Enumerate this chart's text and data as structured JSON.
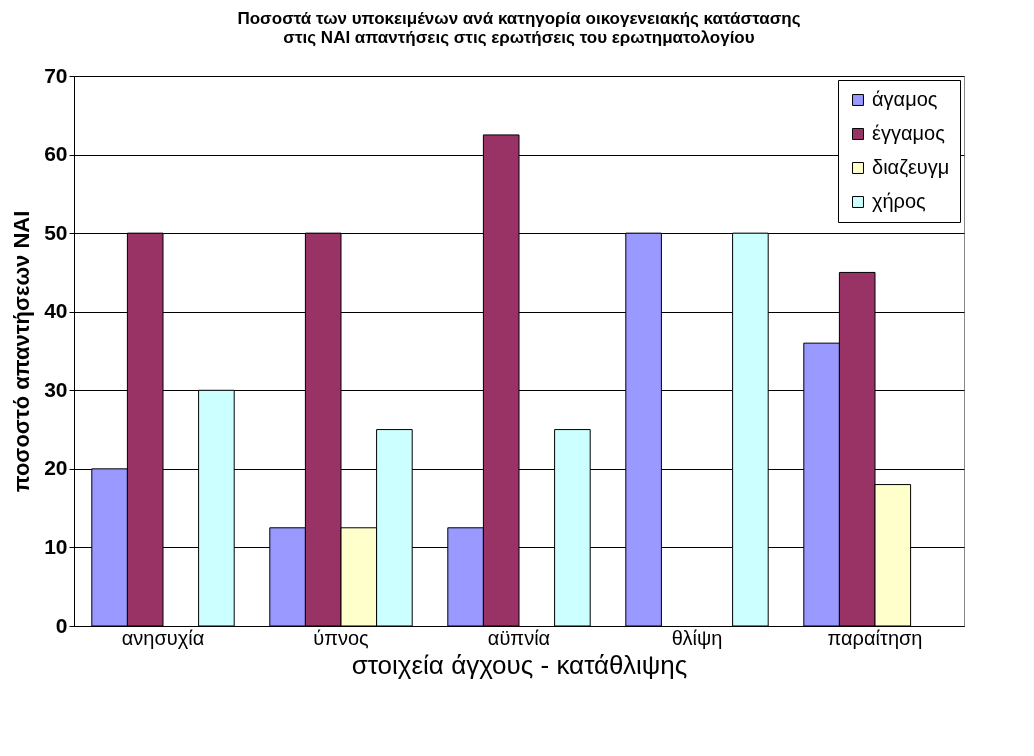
{
  "chart_data": {
    "type": "bar",
    "title": "Ποσοστά των υποκειμένων ανά κατηγορία οικογενειακής κατάστασης\nστις ΝΑΙ απαντήσεις στις ερωτήσεις του ερωτηματολογίου",
    "xlabel": "στοιχεία άγχους - κατάθλιψης",
    "ylabel": "ποσοστό απαντήσεων ΝΑΙ",
    "categories": [
      "ανησυχία",
      "ύπνος",
      "αϋπνία",
      "θλίψη",
      "παραίτηση"
    ],
    "series": [
      {
        "name": "άγαμος",
        "color": "#9999ff",
        "values": [
          20,
          12.5,
          12.5,
          50,
          36
        ]
      },
      {
        "name": "έγγαμος",
        "color": "#993366",
        "values": [
          50,
          50,
          62.5,
          null,
          45
        ]
      },
      {
        "name": "διαζευγμ",
        "color": "#ffffcc",
        "values": [
          null,
          12.5,
          null,
          null,
          18
        ]
      },
      {
        "name": "χήρος",
        "color": "#ccffff",
        "values": [
          30,
          25,
          25,
          50,
          null
        ]
      }
    ],
    "ylim": [
      0,
      70
    ],
    "yticks": [
      0,
      10,
      20,
      30,
      40,
      50,
      60,
      70
    ],
    "grid": "y",
    "legend": "top right"
  }
}
